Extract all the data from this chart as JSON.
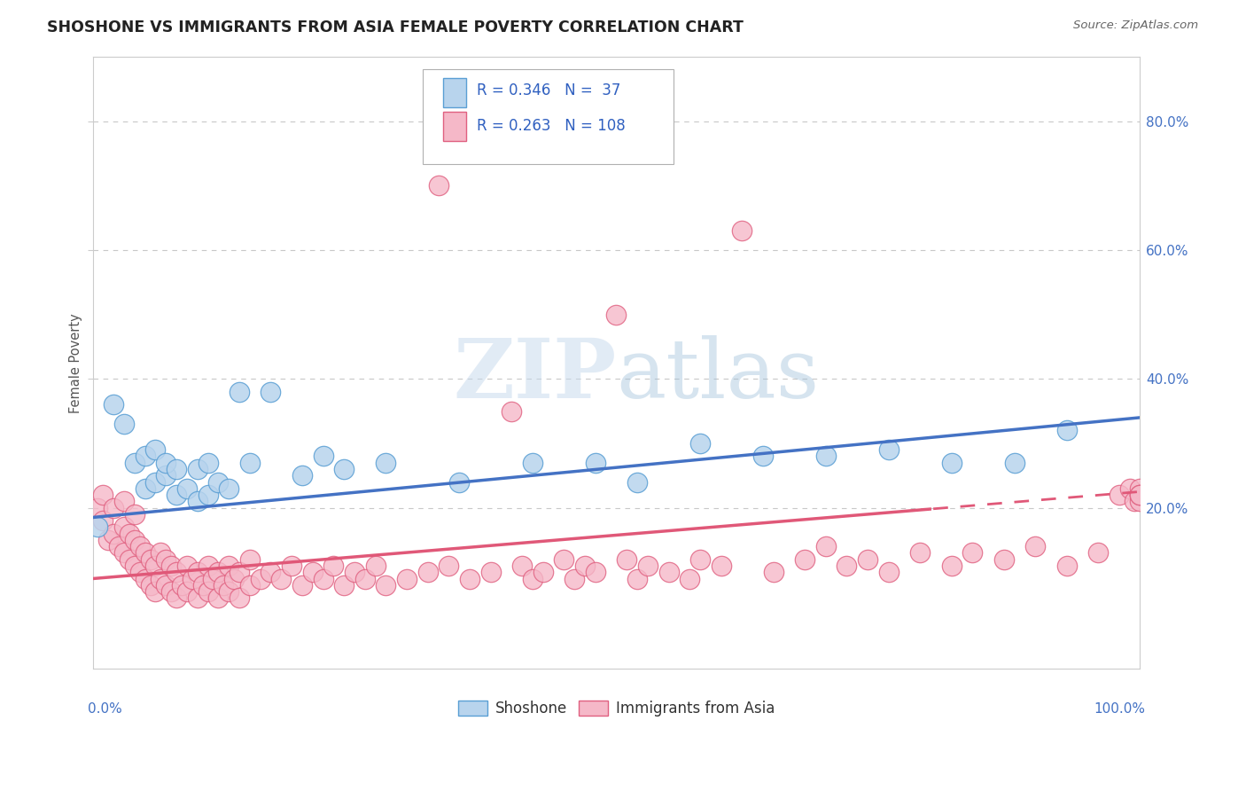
{
  "title": "SHOSHONE VS IMMIGRANTS FROM ASIA FEMALE POVERTY CORRELATION CHART",
  "source": "Source: ZipAtlas.com",
  "ylabel": "Female Poverty",
  "y_ticks": [
    0.2,
    0.4,
    0.6,
    0.8
  ],
  "y_tick_labels": [
    "20.0%",
    "40.0%",
    "60.0%",
    "80.0%"
  ],
  "x_range": [
    0.0,
    1.0
  ],
  "y_range": [
    -0.05,
    0.9
  ],
  "r_shoshone": 0.346,
  "n_shoshone": 37,
  "r_asia": 0.263,
  "n_asia": 108,
  "color_shoshone_fill": "#b8d4ed",
  "color_shoshone_edge": "#5a9fd4",
  "color_asia_fill": "#f5b8c8",
  "color_asia_edge": "#e06080",
  "color_line_shoshone": "#4472c4",
  "color_line_asia": "#e05878",
  "color_tick_labels": "#4472c4",
  "color_legend_text": "#3060c0",
  "background_color": "#ffffff",
  "grid_color": "#c8c8c8",
  "watermark_color": "#d8e4f0",
  "shoshone_x": [
    0.005,
    0.02,
    0.03,
    0.04,
    0.05,
    0.05,
    0.06,
    0.06,
    0.07,
    0.07,
    0.08,
    0.08,
    0.09,
    0.1,
    0.1,
    0.11,
    0.11,
    0.12,
    0.13,
    0.14,
    0.15,
    0.17,
    0.2,
    0.22,
    0.24,
    0.28,
    0.35,
    0.42,
    0.48,
    0.52,
    0.58,
    0.64,
    0.7,
    0.76,
    0.82,
    0.88,
    0.93
  ],
  "shoshone_y": [
    0.17,
    0.36,
    0.33,
    0.27,
    0.23,
    0.28,
    0.24,
    0.29,
    0.25,
    0.27,
    0.26,
    0.22,
    0.23,
    0.21,
    0.26,
    0.22,
    0.27,
    0.24,
    0.23,
    0.38,
    0.27,
    0.38,
    0.25,
    0.28,
    0.26,
    0.27,
    0.24,
    0.27,
    0.27,
    0.24,
    0.3,
    0.28,
    0.28,
    0.29,
    0.27,
    0.27,
    0.32
  ],
  "asia_x": [
    0.005,
    0.01,
    0.01,
    0.015,
    0.02,
    0.02,
    0.025,
    0.03,
    0.03,
    0.03,
    0.035,
    0.035,
    0.04,
    0.04,
    0.04,
    0.045,
    0.045,
    0.05,
    0.05,
    0.055,
    0.055,
    0.06,
    0.06,
    0.065,
    0.065,
    0.07,
    0.07,
    0.075,
    0.075,
    0.08,
    0.08,
    0.085,
    0.09,
    0.09,
    0.095,
    0.1,
    0.1,
    0.105,
    0.11,
    0.11,
    0.115,
    0.12,
    0.12,
    0.125,
    0.13,
    0.13,
    0.135,
    0.14,
    0.14,
    0.15,
    0.15,
    0.16,
    0.17,
    0.18,
    0.19,
    0.2,
    0.21,
    0.22,
    0.23,
    0.24,
    0.25,
    0.26,
    0.27,
    0.28,
    0.3,
    0.32,
    0.33,
    0.34,
    0.36,
    0.38,
    0.4,
    0.41,
    0.42,
    0.43,
    0.45,
    0.46,
    0.47,
    0.48,
    0.5,
    0.51,
    0.52,
    0.53,
    0.55,
    0.57,
    0.58,
    0.6,
    0.62,
    0.65,
    0.68,
    0.7,
    0.72,
    0.74,
    0.76,
    0.79,
    0.82,
    0.84,
    0.87,
    0.9,
    0.93,
    0.96,
    0.98,
    0.99,
    0.995,
    1.0,
    1.0,
    1.0,
    1.0,
    1.0
  ],
  "asia_y": [
    0.2,
    0.22,
    0.18,
    0.15,
    0.16,
    0.2,
    0.14,
    0.13,
    0.17,
    0.21,
    0.12,
    0.16,
    0.11,
    0.15,
    0.19,
    0.1,
    0.14,
    0.09,
    0.13,
    0.08,
    0.12,
    0.07,
    0.11,
    0.09,
    0.13,
    0.08,
    0.12,
    0.07,
    0.11,
    0.06,
    0.1,
    0.08,
    0.07,
    0.11,
    0.09,
    0.06,
    0.1,
    0.08,
    0.07,
    0.11,
    0.09,
    0.06,
    0.1,
    0.08,
    0.07,
    0.11,
    0.09,
    0.06,
    0.1,
    0.08,
    0.12,
    0.09,
    0.1,
    0.09,
    0.11,
    0.08,
    0.1,
    0.09,
    0.11,
    0.08,
    0.1,
    0.09,
    0.11,
    0.08,
    0.09,
    0.1,
    0.7,
    0.11,
    0.09,
    0.1,
    0.35,
    0.11,
    0.09,
    0.1,
    0.12,
    0.09,
    0.11,
    0.1,
    0.5,
    0.12,
    0.09,
    0.11,
    0.1,
    0.09,
    0.12,
    0.11,
    0.63,
    0.1,
    0.12,
    0.14,
    0.11,
    0.12,
    0.1,
    0.13,
    0.11,
    0.13,
    0.12,
    0.14,
    0.11,
    0.13,
    0.22,
    0.23,
    0.21,
    0.22,
    0.23,
    0.21,
    0.22,
    0.22
  ],
  "trend_sho_slope": 0.155,
  "trend_sho_intercept": 0.185,
  "trend_asia_slope": 0.135,
  "trend_asia_intercept": 0.09,
  "trend_asia_dash_start": 0.8
}
